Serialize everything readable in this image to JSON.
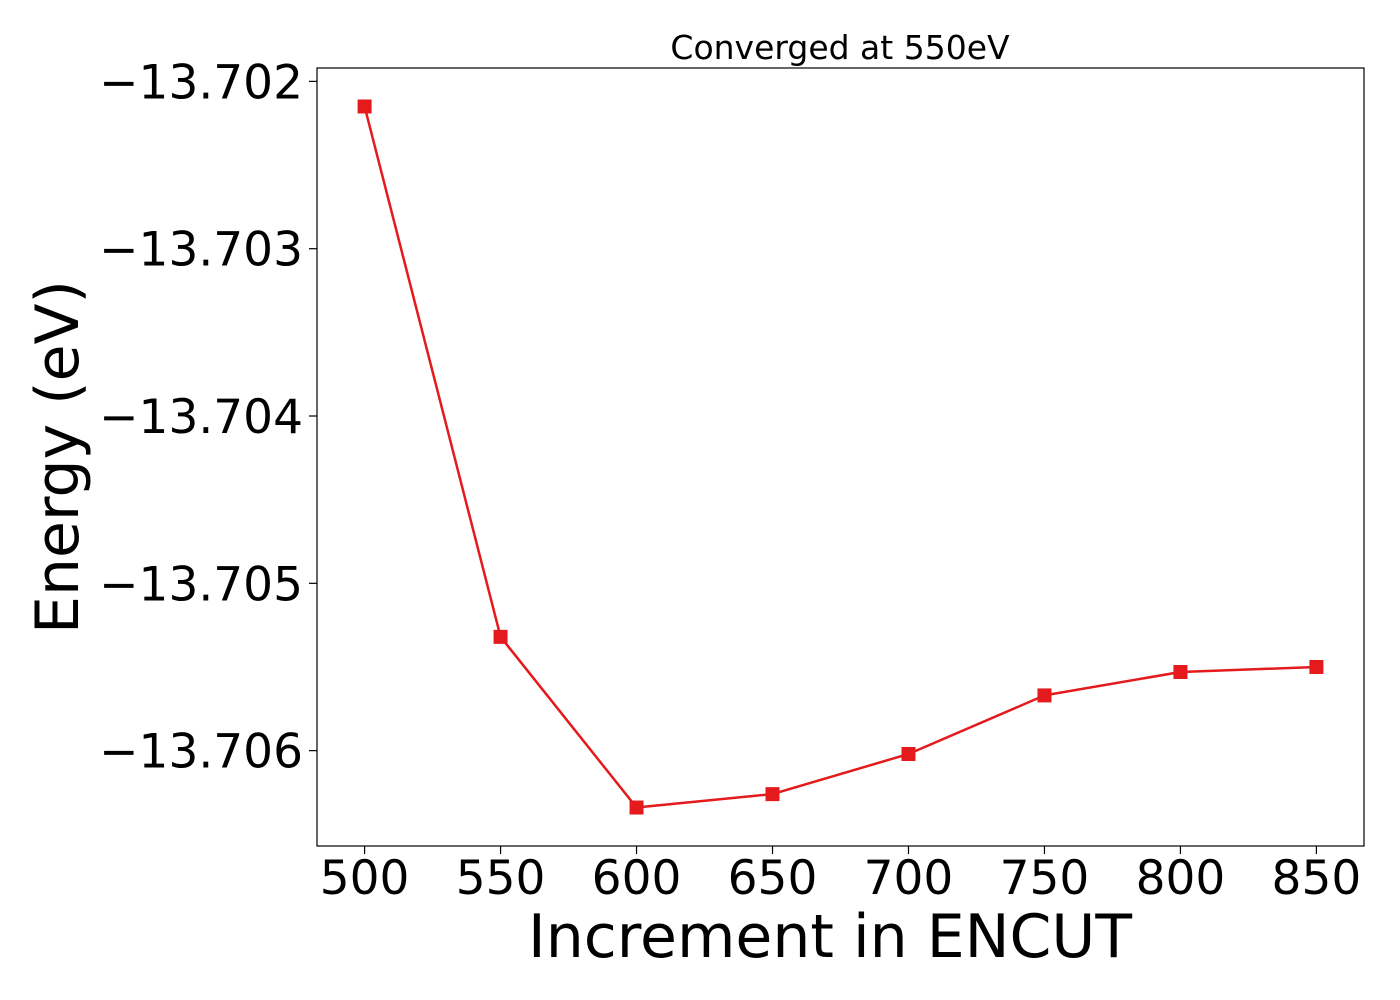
{
  "chart_data": {
    "type": "line",
    "title": "Converged at 550eV",
    "xlabel": "Increment in ENCUT",
    "ylabel": "Energy (eV)",
    "x": [
      500,
      550,
      600,
      650,
      700,
      750,
      800,
      850
    ],
    "xticks": [
      "500",
      "550",
      "600",
      "650",
      "700",
      "750",
      "800",
      "850"
    ],
    "yticks": [
      -13.702,
      -13.703,
      -13.704,
      -13.705,
      -13.706
    ],
    "ytick_labels": [
      "−13.702",
      "−13.703",
      "−13.704",
      "−13.705",
      "−13.706"
    ],
    "xlim": [
      482.5,
      867.5
    ],
    "ylim": [
      -13.70657,
      -13.70192
    ],
    "series": [
      {
        "values": [
          -13.70215,
          -13.70532,
          -13.70634,
          -13.70626,
          -13.70602,
          -13.70567,
          -13.70553,
          -13.7055
        ],
        "color": "#e41a1c",
        "marker": "square"
      }
    ],
    "grid": false,
    "legend": "none"
  }
}
